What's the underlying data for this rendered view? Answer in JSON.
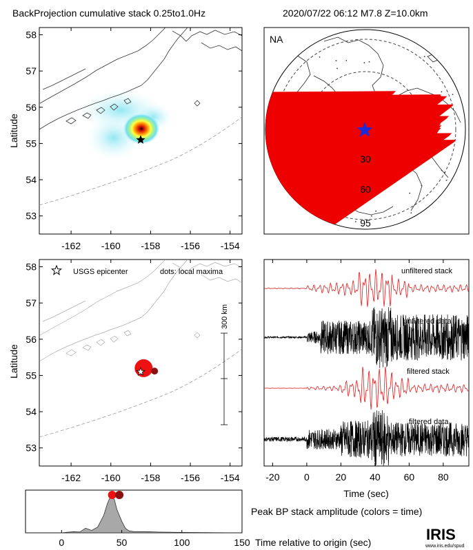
{
  "header": {
    "title_left": "BackProjection cumulative stack 0.25to1.0Hz",
    "title_right": "2020/07/22 06:12   M7.8  Z=10.0km"
  },
  "colors": {
    "station": "#ee0000",
    "epicenter_blue": "#1a2bdc",
    "stack_trace": "#e03030",
    "data_trace": "#000000",
    "peak_early": "#ee1111",
    "peak_late": "#8b1010",
    "amp_fill": "#a8a8a8",
    "contour": "#999999"
  },
  "chart_data": [
    {
      "id": "cumulative_map",
      "type": "heatmap",
      "ylabel": "Latitude",
      "xlim": [
        -163.6,
        -153.4
      ],
      "ylim": [
        52.5,
        58.2
      ],
      "xticks": [
        -162,
        -160,
        -158,
        -156,
        -154
      ],
      "yticks": [
        53,
        54,
        55,
        56,
        57,
        58
      ],
      "epicenter": {
        "lon": -158.5,
        "lat": 55.1
      }
    },
    {
      "id": "station_map",
      "type": "scatter",
      "region_label": "NA",
      "ring_labels": [
        "30",
        "60",
        "95"
      ],
      "source": {
        "lon": -158.5,
        "lat": 55.1
      }
    },
    {
      "id": "local_maxima_map",
      "type": "scatter",
      "ylabel": "Latitude",
      "xlim": [
        -163.6,
        -153.4
      ],
      "ylim": [
        52.5,
        58.2
      ],
      "xticks": [
        -162,
        -160,
        -158,
        -156,
        -154
      ],
      "yticks": [
        53,
        54,
        55,
        56,
        57,
        58
      ],
      "legend_star": "USGS epicenter",
      "legend_dots": "dots: local maxima",
      "scalebar_label": "300 km",
      "maxima": [
        {
          "lon": -158.35,
          "lat": 55.2,
          "size": "large",
          "color": "#ee1111"
        },
        {
          "lon": -157.8,
          "lat": 55.12,
          "size": "small",
          "color": "#8b1010"
        }
      ],
      "epicenter": {
        "lon": -158.5,
        "lat": 55.1
      }
    },
    {
      "id": "waveforms",
      "type": "line",
      "xlabel": "Time (sec)",
      "xlim": [
        -25,
        95
      ],
      "xticks": [
        -20,
        0,
        20,
        40,
        60,
        80
      ],
      "series": [
        {
          "name": "unfiltered stack",
          "color": "#e03030"
        },
        {
          "name": "unfiltered data",
          "color": "#000000"
        },
        {
          "name": "filtered stack",
          "color": "#e03030"
        },
        {
          "name": "filtered data",
          "color": "#000000"
        }
      ]
    },
    {
      "id": "peak_amplitude",
      "type": "area",
      "title": "Peak BP stack amplitude (colors = time)",
      "xlabel": "Time relative to origin (sec)",
      "xlim": [
        -30,
        150
      ],
      "xticks": [
        0,
        50,
        100,
        150
      ],
      "x": [
        -30,
        0,
        10,
        15,
        20,
        25,
        30,
        35,
        38,
        40,
        42,
        44,
        46,
        48,
        50,
        53,
        56,
        60,
        70,
        80,
        100,
        150
      ],
      "y": [
        0.0,
        0.0,
        0.03,
        0.02,
        0.12,
        0.06,
        0.15,
        0.45,
        0.75,
        0.9,
        0.95,
        0.85,
        0.6,
        0.45,
        0.3,
        0.12,
        0.05,
        0.03,
        0.03,
        0.02,
        0.01,
        0.0
      ],
      "peaks": [
        {
          "x": 42,
          "color": "#ee1111"
        },
        {
          "x": 48,
          "color": "#8b1010"
        }
      ]
    }
  ],
  "logo": {
    "text": "IRIS",
    "url_text": "www.iris.edu/spud"
  }
}
